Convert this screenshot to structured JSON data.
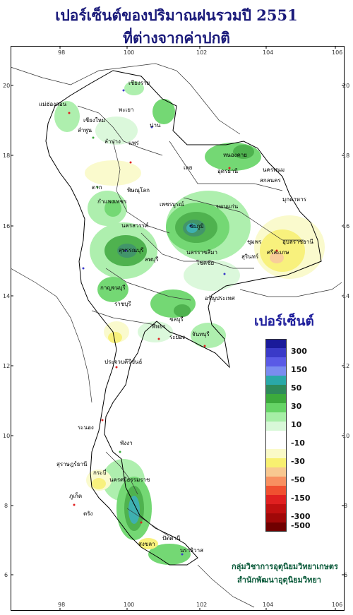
{
  "title": {
    "line1": "เปอร์เซ็นต์ของปริมาณฝนรวมปี  2551",
    "line2": "ที่ต่างจากค่าปกติ"
  },
  "axes": {
    "top_ticks": [
      "98",
      "100",
      "102",
      "104",
      "106"
    ],
    "bottom_ticks": [
      "98",
      "100",
      "102",
      "104",
      "106"
    ],
    "left_ticks": [
      "20",
      "18",
      "16",
      "14",
      "12",
      "10",
      "8",
      "6"
    ],
    "right_ticks": [
      "20",
      "18",
      "16",
      "14",
      "12",
      "10",
      "8",
      "6"
    ]
  },
  "legend": {
    "title": "เปอร์เซ็นต์",
    "entries": [
      {
        "color": "#1a1a9a",
        "label": ""
      },
      {
        "color": "#3a3ac8",
        "label": "300"
      },
      {
        "color": "#5a5ae6",
        "label": ""
      },
      {
        "color": "#7a8cf0",
        "label": "150"
      },
      {
        "color": "#2aa8a8",
        "label": ""
      },
      {
        "color": "#2e8a5a",
        "label": "50"
      },
      {
        "color": "#3caa3c",
        "label": ""
      },
      {
        "color": "#66d466",
        "label": "30"
      },
      {
        "color": "#a6eea6",
        "label": ""
      },
      {
        "color": "#d8f8d8",
        "label": "10"
      },
      {
        "color": "#ffffff",
        "label": ""
      },
      {
        "color": "#ffffff",
        "label": "-10"
      },
      {
        "color": "#fafac8",
        "label": ""
      },
      {
        "color": "#f8f070",
        "label": "-30"
      },
      {
        "color": "#f8c890",
        "label": ""
      },
      {
        "color": "#f89060",
        "label": "-50"
      },
      {
        "color": "#f05030",
        "label": ""
      },
      {
        "color": "#e02020",
        "label": "-150"
      },
      {
        "color": "#c01010",
        "label": ""
      },
      {
        "color": "#a00808",
        "label": "-300"
      },
      {
        "color": "#700000",
        "label": "-500"
      }
    ]
  },
  "places": [
    "เชียงราย",
    "แม่ฮ่องสอน",
    "เชียงใหม่",
    "ลำพูน",
    "ลำปาง",
    "พะเยา",
    "น่าน",
    "แพร่",
    "หนองคาย",
    "อุดรธานี",
    "นครพนม",
    "สกลนคร",
    "เลย",
    "มุกดาหาร",
    "ตาก",
    "พิษณุโลก",
    "กำแพงเพชร",
    "เพชรบูรณ์",
    "ขอนแก่น",
    "ชัยภูมิ",
    "อุบลราชธานี",
    "นครสวรรค์",
    "ชุมพร",
    "สุรินทร์",
    "ศรีสะเกษ",
    "สุพรรณบุรี",
    "นครราชสีมา",
    "ลพบุรี",
    "โชคชัย",
    "กาญจนบุรี",
    "อรัญประเทศ",
    "ราชบุรี",
    "ชลบุรี",
    "พัทยา",
    "ระยอง",
    "จันทบุรี",
    "ประจวบคีรีขันธ์",
    "ระนอง",
    "นครศรีธรรมราช",
    "ภูเก็ต",
    "กระบี่",
    "พังงา",
    "ตรัง",
    "สงขลา",
    "ปัตตานี",
    "นราธิวาส",
    "สุราษฎร์ธานี"
  ],
  "credit": {
    "line1": "กลุ่มวิชาการอุตุนิยมวิทยาเกษตร",
    "line2": "สำนักพัฒนาอุตุนิยมวิทยา"
  }
}
